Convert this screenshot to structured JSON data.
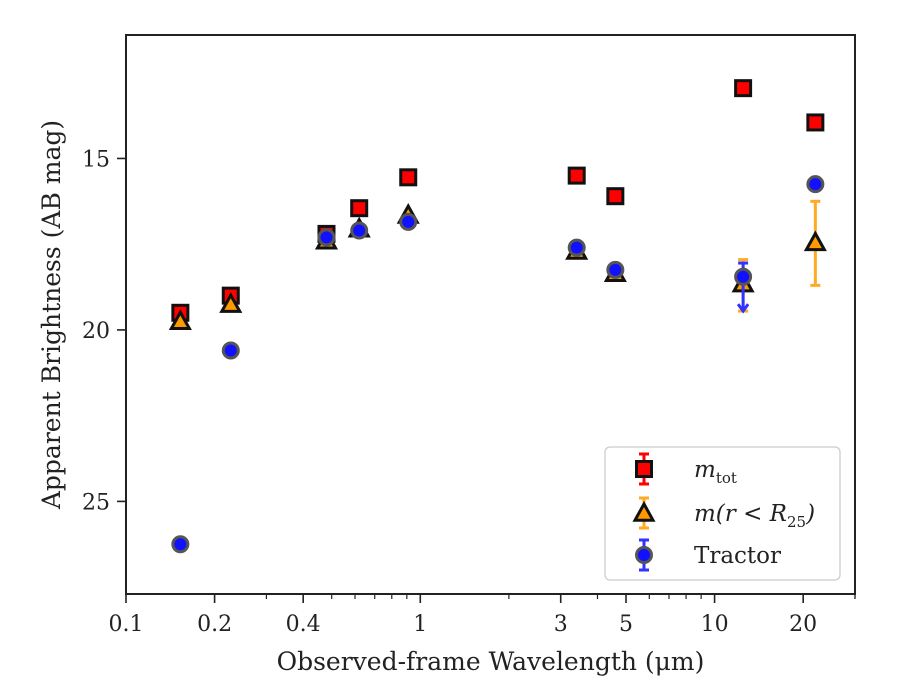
{
  "chart_data": {
    "type": "scatter",
    "title": "",
    "xlabel": "Observed-frame Wavelength (μm)",
    "ylabel": "Apparent Brightness (AB mag)",
    "xscale": "log",
    "xlim": [
      0.1,
      30
    ],
    "ylim": [
      27.7,
      11.4
    ],
    "y_inverted": true,
    "grid": false,
    "legend_position": "lower-right",
    "x_ticks": [
      {
        "value": 0.1,
        "label": "0.1"
      },
      {
        "value": 0.2,
        "label": "0.2"
      },
      {
        "value": 0.4,
        "label": "0.4"
      },
      {
        "value": 1,
        "label": "1"
      },
      {
        "value": 3,
        "label": "3"
      },
      {
        "value": 5,
        "label": "5"
      },
      {
        "value": 10,
        "label": "10"
      },
      {
        "value": 20,
        "label": "20"
      }
    ],
    "y_ticks": [
      {
        "value": 15,
        "label": "15"
      },
      {
        "value": 20,
        "label": "20"
      },
      {
        "value": 25,
        "label": "25"
      }
    ],
    "series": [
      {
        "name_main": "m",
        "name_sub": "tot",
        "marker": "square",
        "color": "#ff0000",
        "edge": "#111111",
        "errorbar_color": "#ff0000",
        "points": [
          {
            "x": 0.153,
            "y": 19.5
          },
          {
            "x": 0.227,
            "y": 19.0
          },
          {
            "x": 0.48,
            "y": 17.2
          },
          {
            "x": 0.62,
            "y": 16.45
          },
          {
            "x": 0.91,
            "y": 15.55
          },
          {
            "x": 3.4,
            "y": 15.5
          },
          {
            "x": 4.6,
            "y": 16.1
          },
          {
            "x": 12.5,
            "y": 12.95
          },
          {
            "x": 22.0,
            "y": 13.95
          }
        ]
      },
      {
        "name_main": "m(r < R",
        "name_sub": "25",
        "name_end": ")",
        "marker": "triangle",
        "color": "#ff9900",
        "edge": "#111111",
        "errorbar_color": "#ffaa22",
        "points": [
          {
            "x": 0.153,
            "y": 19.75
          },
          {
            "x": 0.227,
            "y": 19.25
          },
          {
            "x": 0.48,
            "y": 17.4
          },
          {
            "x": 0.62,
            "y": 17.05
          },
          {
            "x": 0.91,
            "y": 16.65
          },
          {
            "x": 3.4,
            "y": 17.7
          },
          {
            "x": 4.6,
            "y": 18.35
          },
          {
            "x": 12.5,
            "y": 18.65,
            "yerr_low": 17.95,
            "yerr_high": 19.45
          },
          {
            "x": 22.0,
            "y": 17.45,
            "yerr_low": 16.25,
            "yerr_high": 18.7
          }
        ]
      },
      {
        "name_main": "Tractor",
        "marker": "circle",
        "color": "#1111ff",
        "edge": "#555555",
        "errorbar_color": "#3333ff",
        "points": [
          {
            "x": 0.153,
            "y": 26.25
          },
          {
            "x": 0.227,
            "y": 20.6
          },
          {
            "x": 0.48,
            "y": 17.3
          },
          {
            "x": 0.62,
            "y": 17.1
          },
          {
            "x": 0.91,
            "y": 16.85
          },
          {
            "x": 3.4,
            "y": 17.6
          },
          {
            "x": 4.6,
            "y": 18.25
          },
          {
            "x": 12.5,
            "y": 18.45,
            "yerr_low": 18.05,
            "yerr_high": 19.45,
            "upper_limit_arrow": true
          },
          {
            "x": 22.0,
            "y": 15.75
          }
        ]
      }
    ]
  }
}
